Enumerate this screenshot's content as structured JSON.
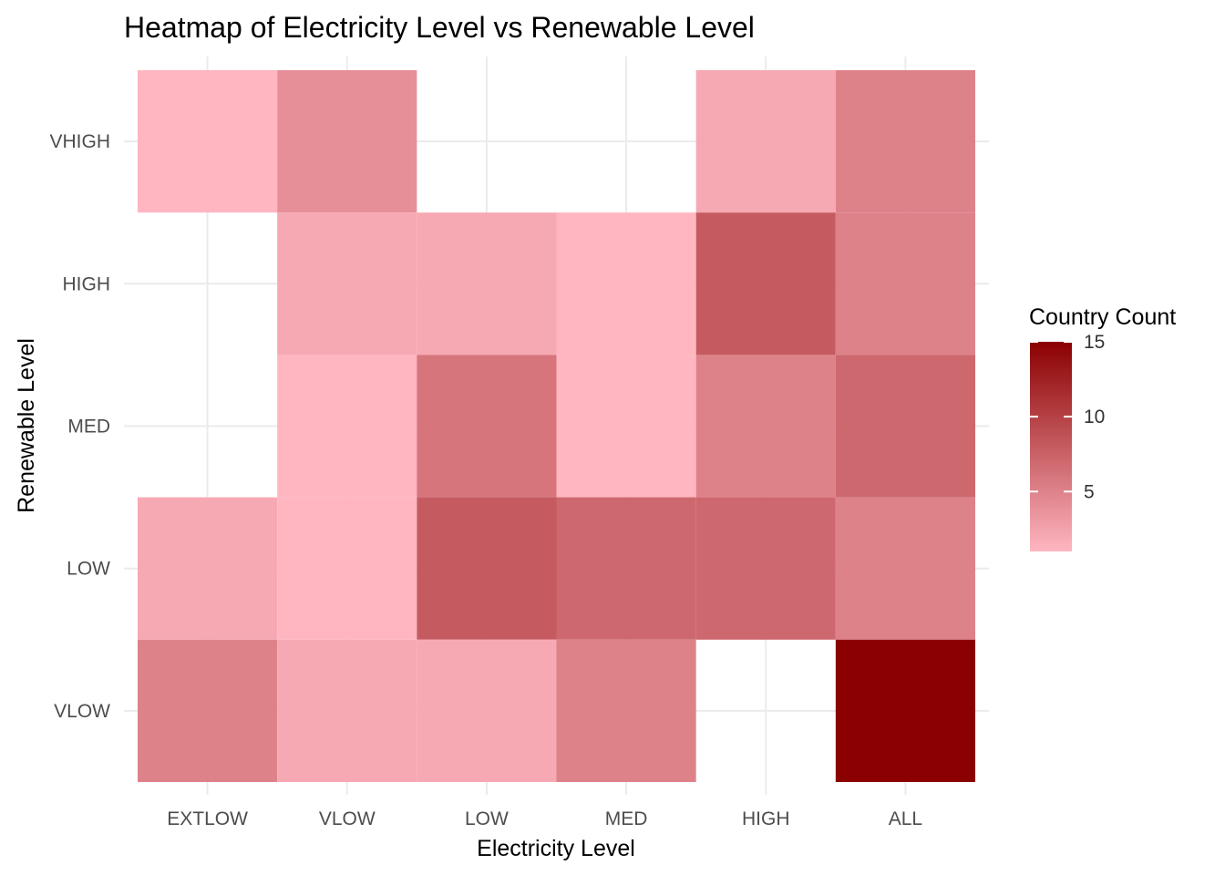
{
  "chart_data": {
    "type": "heatmap",
    "title": "Heatmap of Electricity Level vs Renewable Level",
    "xlabel": "Electricity Level",
    "ylabel": "Renewable Level",
    "x_categories": [
      "EXTLOW",
      "VLOW",
      "LOW",
      "MED",
      "HIGH",
      "ALL"
    ],
    "y_categories": [
      "VLOW",
      "LOW",
      "MED",
      "HIGH",
      "VHIGH"
    ],
    "cells": [
      {
        "x": "EXTLOW",
        "y": "VHIGH",
        "value": 1
      },
      {
        "x": "VLOW",
        "y": "VHIGH",
        "value": 4
      },
      {
        "x": "HIGH",
        "y": "VHIGH",
        "value": 2
      },
      {
        "x": "ALL",
        "y": "VHIGH",
        "value": 5
      },
      {
        "x": "VLOW",
        "y": "HIGH",
        "value": 2
      },
      {
        "x": "LOW",
        "y": "HIGH",
        "value": 2
      },
      {
        "x": "MED",
        "y": "HIGH",
        "value": 1
      },
      {
        "x": "HIGH",
        "y": "HIGH",
        "value": 8
      },
      {
        "x": "ALL",
        "y": "HIGH",
        "value": 5
      },
      {
        "x": "VLOW",
        "y": "MED",
        "value": 1
      },
      {
        "x": "LOW",
        "y": "MED",
        "value": 6
      },
      {
        "x": "MED",
        "y": "MED",
        "value": 1
      },
      {
        "x": "HIGH",
        "y": "MED",
        "value": 5
      },
      {
        "x": "ALL",
        "y": "MED",
        "value": 7
      },
      {
        "x": "EXTLOW",
        "y": "LOW",
        "value": 2
      },
      {
        "x": "VLOW",
        "y": "LOW",
        "value": 1
      },
      {
        "x": "LOW",
        "y": "LOW",
        "value": 8
      },
      {
        "x": "MED",
        "y": "LOW",
        "value": 7
      },
      {
        "x": "HIGH",
        "y": "LOW",
        "value": 7
      },
      {
        "x": "ALL",
        "y": "LOW",
        "value": 5
      },
      {
        "x": "EXTLOW",
        "y": "VLOW",
        "value": 5
      },
      {
        "x": "VLOW",
        "y": "VLOW",
        "value": 2
      },
      {
        "x": "LOW",
        "y": "VLOW",
        "value": 2
      },
      {
        "x": "MED",
        "y": "VLOW",
        "value": 5
      },
      {
        "x": "ALL",
        "y": "VLOW",
        "value": 15
      }
    ],
    "value_range": [
      1,
      15
    ],
    "grid": true,
    "legend": {
      "title": "Country Count",
      "position": "right",
      "ticks": [
        5,
        10,
        15
      ],
      "low_color": "#FFB6C1",
      "high_color": "#8B0000"
    }
  }
}
